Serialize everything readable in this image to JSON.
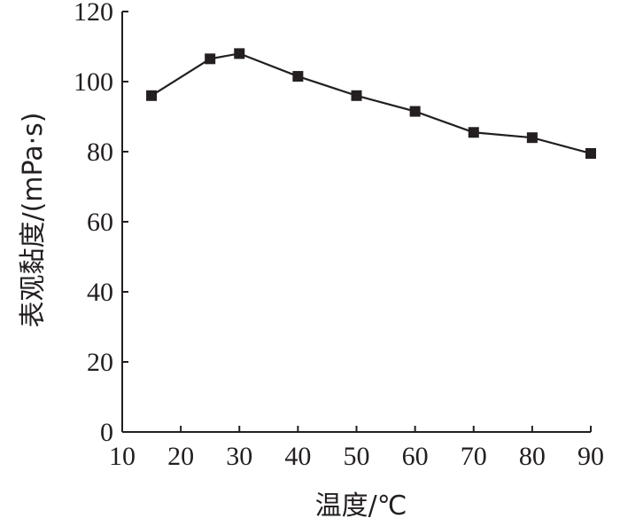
{
  "chart_data": {
    "type": "line",
    "xlabel": "温度/℃",
    "ylabel": "表观黏度/(mPa·s)",
    "xlim": [
      10,
      90
    ],
    "ylim": [
      0,
      120
    ],
    "x_ticks": [
      10,
      20,
      30,
      40,
      50,
      60,
      70,
      80,
      90
    ],
    "y_ticks": [
      0,
      20,
      40,
      60,
      80,
      100,
      120
    ],
    "grid": false,
    "marker": "square",
    "series": [
      {
        "x": [
          15,
          25,
          30,
          40,
          50,
          60,
          70,
          80,
          90
        ],
        "values": [
          96,
          106.5,
          108,
          101.5,
          96,
          91.5,
          85.5,
          84,
          79.5
        ]
      }
    ]
  }
}
